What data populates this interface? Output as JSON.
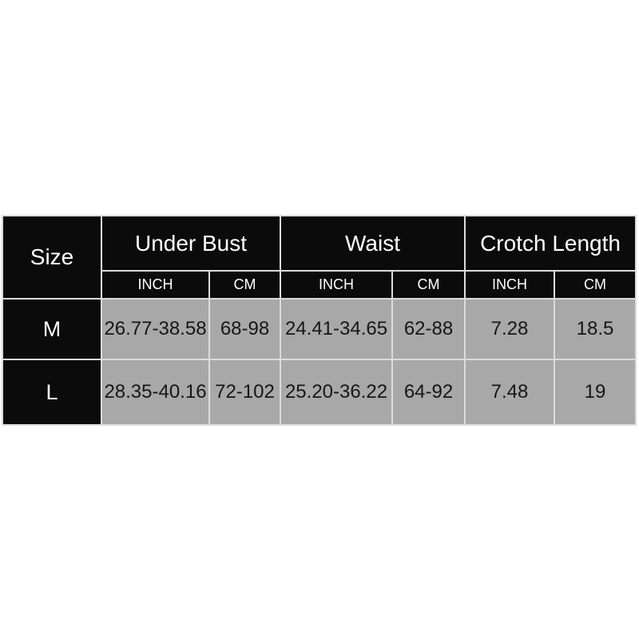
{
  "page": {
    "background": "#ffffff"
  },
  "size_chart": {
    "header": {
      "size_label": "Size",
      "groups": [
        {
          "label": "Under Bust"
        },
        {
          "label": "Waist"
        },
        {
          "label": "Crotch Length"
        }
      ],
      "units": [
        "INCH",
        "CM",
        "INCH",
        "CM",
        "INCH",
        "CM"
      ]
    },
    "rows": [
      {
        "size": "M",
        "values": [
          "26.77-38.58",
          "68-98",
          "24.41-34.65",
          "62-88",
          "7.28",
          "18.5"
        ]
      },
      {
        "size": "L",
        "values": [
          "28.35-40.16",
          "72-102",
          "25.20-36.22",
          "64-92",
          "7.48",
          "19"
        ]
      }
    ],
    "colors": {
      "header_bg": "#0b0b0b",
      "header_text": "#ffffff",
      "data_bg": "#a8a8a8",
      "data_text": "#161616",
      "grid_line": "#dcdcdc",
      "page_bg": "#ffffff"
    }
  },
  "chart_data": {
    "type": "table",
    "columns": [
      "Size",
      "Under Bust INCH",
      "Under Bust CM",
      "Waist INCH",
      "Waist CM",
      "Crotch Length INCH",
      "Crotch Length CM"
    ],
    "rows": [
      [
        "M",
        "26.77-38.58",
        "68-98",
        "24.41-34.65",
        "62-88",
        "7.28",
        "18.5"
      ],
      [
        "L",
        "28.35-40.16",
        "72-102",
        "25.20-36.22",
        "64-92",
        "7.48",
        "19"
      ]
    ],
    "layout": {
      "grid": true,
      "header_style": "black-on-top-and-left",
      "body_style": "gray-cells"
    }
  }
}
